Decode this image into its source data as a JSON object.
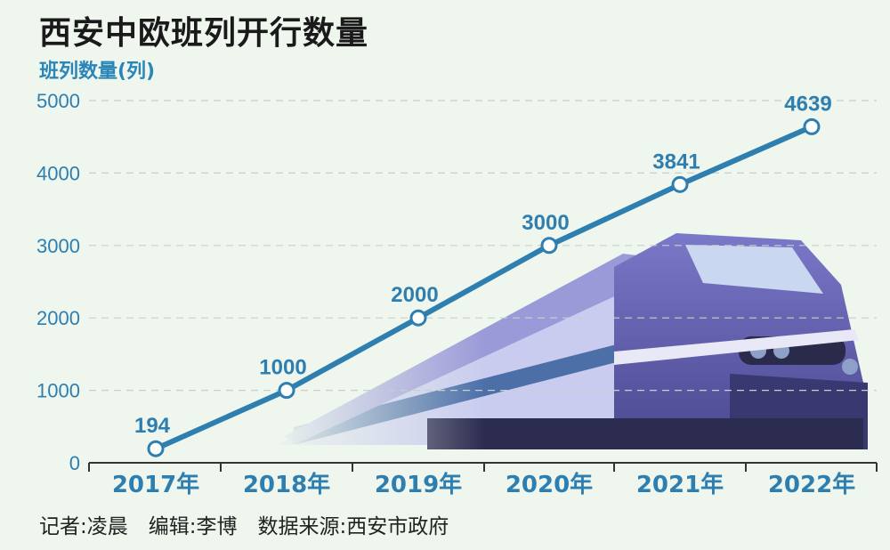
{
  "title": "西安中欧班列开行数量",
  "footer": "记者:凌晨　编辑:李博　数据来源:西安市政府",
  "colors": {
    "line": "#2e7fb0",
    "axis_text": "#2e7fb0",
    "title_text": "#1a1a1a",
    "grid": "#c9cfc9",
    "background": "#eef6ee"
  },
  "chart_data": {
    "type": "line",
    "title": "西安中欧班列开行数量",
    "ylabel": "班列数量(列)",
    "xlabel": "",
    "categories": [
      "2017年",
      "2018年",
      "2019年",
      "2020年",
      "2021年",
      "2022年"
    ],
    "series": [
      {
        "values": [
          194,
          1000,
          2000,
          3000,
          3841,
          4639
        ]
      }
    ],
    "data_labels": [
      "194",
      "1000",
      "2000",
      "3000",
      "3841",
      "4639"
    ],
    "ylim": [
      0,
      5000
    ],
    "yticks": [
      0,
      1000,
      2000,
      3000,
      4000,
      5000
    ],
    "grid": "horizontal dashed",
    "background_image": "train-illustration"
  }
}
